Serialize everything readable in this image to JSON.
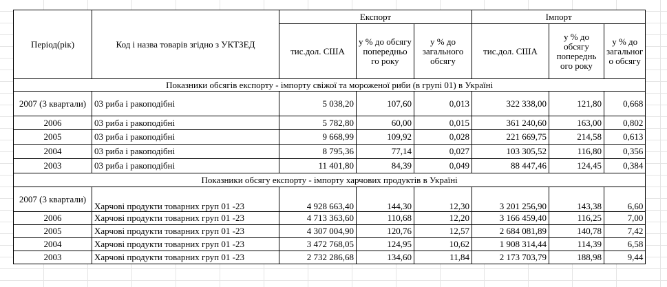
{
  "header": {
    "period": "Період(рік)",
    "code_name": "Код і назва товарів згідно з УКТЗЕД",
    "export": "Експорт",
    "import": "Імпорт",
    "exp_cols": [
      "тис.дол. США",
      "у % до обсягу попередньо го року",
      "у % до загального обсягу"
    ],
    "imp_cols": [
      "тис.дол. США",
      "у % до обсягу попереднь ого року",
      "у % до загальног о обсягу"
    ]
  },
  "section1": {
    "title": "Показники обсягів експорту - імпорту свіжої та мороженої риби (в групі 01) в Україні",
    "rows": [
      {
        "period": "2007 (3 квартали)",
        "name": "03 риба і ракоподібні",
        "exp_usd": "5 038,20",
        "exp_prev": "107,60",
        "exp_share": "0,013",
        "imp_usd": "322 338,00",
        "imp_prev": "121,80",
        "imp_share": "0,668"
      },
      {
        "period": "2006",
        "name": "03 риба і ракоподібні",
        "exp_usd": "5 782,80",
        "exp_prev": "60,00",
        "exp_share": "0,015",
        "imp_usd": "361 240,60",
        "imp_prev": "163,00",
        "imp_share": "0,802"
      },
      {
        "period": "2005",
        "name": "03 риба і ракоподібні",
        "exp_usd": "9 668,99",
        "exp_prev": "109,92",
        "exp_share": "0,028",
        "imp_usd": "221 669,75",
        "imp_prev": "214,58",
        "imp_share": "0,613"
      },
      {
        "period": "2004",
        "name": "03 риба і ракоподібні",
        "exp_usd": "8 795,36",
        "exp_prev": "77,14",
        "exp_share": "0,027",
        "imp_usd": "103 305,52",
        "imp_prev": "116,80",
        "imp_share": "0,356"
      },
      {
        "period": "2003",
        "name": "03 риба і ракоподібні",
        "exp_usd": "11 401,80",
        "exp_prev": "84,39",
        "exp_share": "0,049",
        "imp_usd": "88 447,46",
        "imp_prev": "124,45",
        "imp_share": "0,384"
      }
    ]
  },
  "section2": {
    "title": "Показники обсягу експорту - імпорту харчових продуктів в Україні",
    "rows": [
      {
        "period": "2007 (3 квартали)",
        "name": "Харчові продукти товарних груп 01 -23",
        "exp_usd": "4 928 663,40",
        "exp_prev": "144,30",
        "exp_share": "12,30",
        "imp_usd": "3 201 256,90",
        "imp_prev": "143,38",
        "imp_share": "6,60"
      },
      {
        "period": "2006",
        "name": "Харчові продукти товарних груп 01 -23",
        "exp_usd": "4 713 363,60",
        "exp_prev": "110,68",
        "exp_share": "12,20",
        "imp_usd": "3 166 459,40",
        "imp_prev": "116,25",
        "imp_share": "7,00"
      },
      {
        "period": "2005",
        "name": "Харчові продукти товарних груп 01 -23",
        "exp_usd": "4 307 004,90",
        "exp_prev": "120,76",
        "exp_share": "12,57",
        "imp_usd": "2 684 081,89",
        "imp_prev": "140,78",
        "imp_share": "7,42"
      },
      {
        "period": "2004",
        "name": "Харчові продукти товарних груп 01 -23",
        "exp_usd": "3 472 768,05",
        "exp_prev": "124,95",
        "exp_share": "10,62",
        "imp_usd": "1 908 314,44",
        "imp_prev": "114,39",
        "imp_share": "6,58"
      },
      {
        "period": "2003",
        "name": "Харчові продукти товарних груп 01 -23",
        "exp_usd": "2 732 286,68",
        "exp_prev": "134,60",
        "exp_share": "11,84",
        "imp_usd": "2 173 703,79",
        "imp_prev": "188,98",
        "imp_share": "9,44"
      }
    ]
  }
}
